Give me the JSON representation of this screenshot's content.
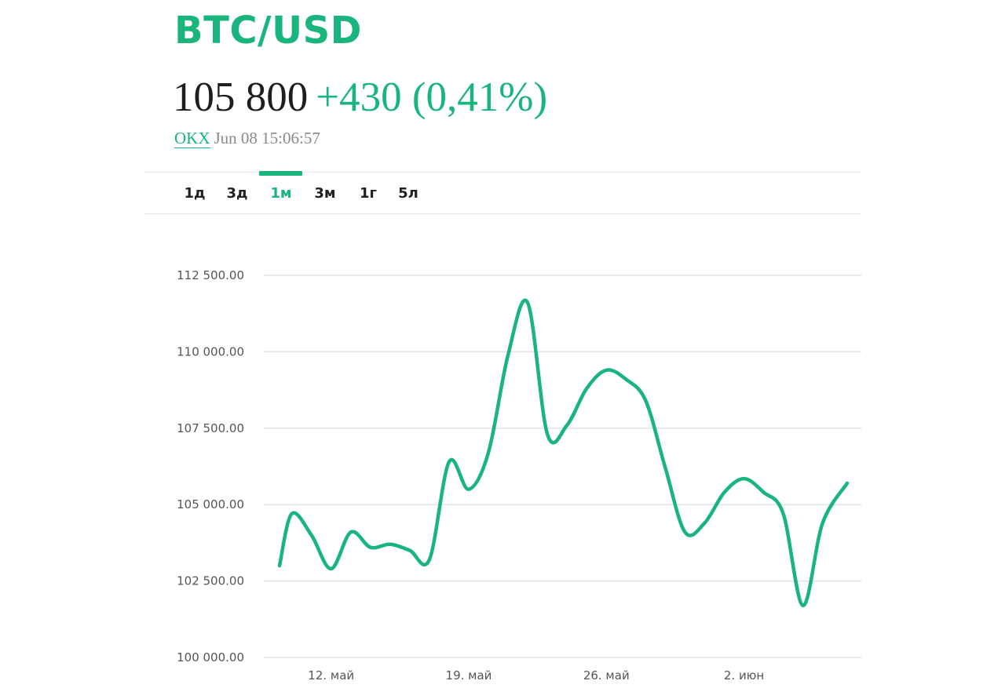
{
  "header": {
    "pair": "BTC/USD",
    "price": "105 800",
    "change": "+430 (0,41%)",
    "source": "OKX",
    "timestamp": "Jun 08 15:06:57"
  },
  "tabs": [
    {
      "label": "1д",
      "active": false
    },
    {
      "label": "3д",
      "active": false
    },
    {
      "label": "1м",
      "active": true
    },
    {
      "label": "3м",
      "active": false
    },
    {
      "label": "1г",
      "active": false
    },
    {
      "label": "5л",
      "active": false
    }
  ],
  "colors": {
    "accent": "#19b57d",
    "grid": "#e3e3e3",
    "text": "#1e1e1e",
    "muted": "#8a8a8a"
  },
  "chart_data": {
    "type": "line",
    "title": "",
    "xlabel": "",
    "ylabel": "",
    "ylim": [
      100000,
      112500
    ],
    "xlim": [
      "2025-05-09",
      "2025-06-08"
    ],
    "y_ticks": [
      {
        "value": 112500,
        "label": "112 500.00"
      },
      {
        "value": 110000,
        "label": "110 000.00"
      },
      {
        "value": 107500,
        "label": "107 500.00"
      },
      {
        "value": 105000,
        "label": "105 000.00"
      },
      {
        "value": 102500,
        "label": "102 500.00"
      },
      {
        "value": 100000,
        "label": "100 000.00"
      }
    ],
    "x_ticks": [
      {
        "date": "2025-05-12",
        "label": "12. май"
      },
      {
        "date": "2025-05-19",
        "label": "19. май"
      },
      {
        "date": "2025-05-26",
        "label": "26. май"
      },
      {
        "date": "2025-06-02",
        "label": "2. июн"
      }
    ],
    "grid": true,
    "legend": false,
    "series": [
      {
        "points": [
          [
            "2025-05-09 09:00",
            103000
          ],
          [
            "2025-05-10 00:00",
            104700
          ],
          [
            "2025-05-11 00:00",
            104000
          ],
          [
            "2025-05-12 00:00",
            102900
          ],
          [
            "2025-05-13 00:00",
            104100
          ],
          [
            "2025-05-14 00:00",
            103600
          ],
          [
            "2025-05-15 00:00",
            103700
          ],
          [
            "2025-05-16 00:00",
            103500
          ],
          [
            "2025-05-17 00:00",
            103200
          ],
          [
            "2025-05-18 00:00",
            106400
          ],
          [
            "2025-05-19 00:00",
            105500
          ],
          [
            "2025-05-20 00:00",
            106700
          ],
          [
            "2025-05-21 00:00",
            109900
          ],
          [
            "2025-05-22 00:00",
            111600
          ],
          [
            "2025-05-23 00:00",
            107300
          ],
          [
            "2025-05-24 00:00",
            107600
          ],
          [
            "2025-05-25 00:00",
            108800
          ],
          [
            "2025-05-26 00:00",
            109400
          ],
          [
            "2025-05-27 00:00",
            109100
          ],
          [
            "2025-05-28 00:00",
            108400
          ],
          [
            "2025-05-29 00:00",
            106200
          ],
          [
            "2025-05-30 00:00",
            104100
          ],
          [
            "2025-05-31 00:00",
            104400
          ],
          [
            "2025-06-01 00:00",
            105400
          ],
          [
            "2025-06-02 00:00",
            105850
          ],
          [
            "2025-06-03 00:00",
            105400
          ],
          [
            "2025-06-04 00:00",
            104700
          ],
          [
            "2025-06-05 00:00",
            101700
          ],
          [
            "2025-06-06 00:00",
            104400
          ],
          [
            "2025-06-07 06:00",
            105700
          ]
        ]
      }
    ]
  }
}
